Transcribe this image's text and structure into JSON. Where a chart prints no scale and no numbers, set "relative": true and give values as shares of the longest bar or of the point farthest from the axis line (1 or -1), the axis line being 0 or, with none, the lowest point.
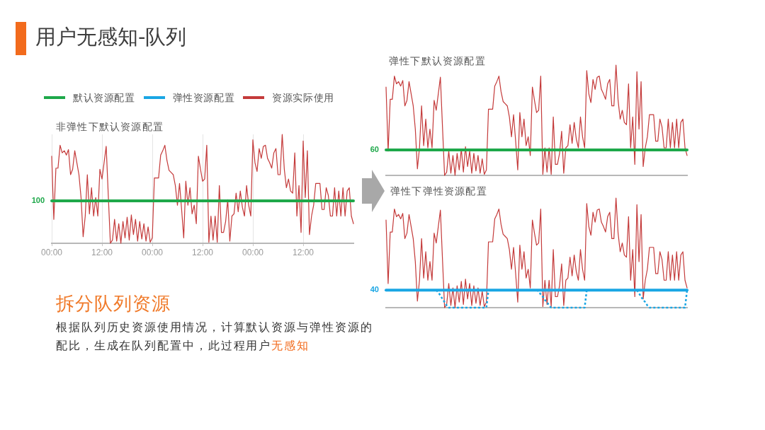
{
  "chart_data": [
    {
      "type": "other",
      "title": "用户无感知-队列"
    },
    {
      "type": "line",
      "title": "非弹性下默认资源配置",
      "relative": true,
      "legend": "top",
      "grid": "x",
      "marker": "none",
      "categories": [
        "00:00",
        null,
        null,
        null,
        null,
        null,
        null,
        null,
        null,
        null,
        null,
        null,
        null,
        null,
        null,
        null,
        null,
        null,
        null,
        null,
        null,
        null,
        null,
        null,
        "12:00",
        null,
        null,
        null,
        null,
        null,
        null,
        null,
        null,
        null,
        null,
        null,
        null,
        null,
        null,
        null,
        null,
        null,
        null,
        null,
        null,
        null,
        null,
        null,
        "00:00",
        null,
        null,
        null,
        null,
        null,
        null,
        null,
        null,
        null,
        null,
        null,
        null,
        null,
        null,
        null,
        null,
        null,
        null,
        null,
        null,
        null,
        null,
        null,
        "12:00",
        null,
        null,
        null,
        null,
        null,
        null,
        null,
        null,
        null,
        null,
        null,
        null,
        null,
        null,
        null,
        null,
        null,
        null,
        null,
        null,
        null,
        null,
        null,
        "00:00",
        null,
        null,
        null,
        null,
        null,
        null,
        null,
        null,
        null,
        null,
        null,
        null,
        null,
        null,
        null,
        null,
        null,
        null,
        null,
        null,
        null,
        null,
        null,
        "12:00",
        null,
        null,
        null,
        null,
        null,
        null,
        null,
        null,
        null,
        null,
        null,
        null,
        null,
        null,
        null,
        null,
        null,
        null,
        null,
        null,
        null,
        null,
        null,
        null
      ],
      "series": [
        {
          "name": "默认资源配置",
          "color": "#1ea84a",
          "values": [
            0.39,
            0.39,
            0.39,
            0.39,
            0.39,
            0.39,
            0.39,
            0.39,
            0.39,
            0.39,
            0.39,
            0.39,
            0.39,
            0.39,
            0.39,
            0.39,
            0.39,
            0.39,
            0.39,
            0.39,
            0.39,
            0.39,
            0.39,
            0.39,
            0.39,
            0.39,
            0.39,
            0.39,
            0.39,
            0.39,
            0.39,
            0.39,
            0.39,
            0.39,
            0.39,
            0.39,
            0.39,
            0.39,
            0.39,
            0.39,
            0.39,
            0.39,
            0.39,
            0.39,
            0.39,
            0.39,
            0.39,
            0.39,
            0.39,
            0.39,
            0.39,
            0.39,
            0.39,
            0.39,
            0.39,
            0.39,
            0.39,
            0.39,
            0.39,
            0.39,
            0.39,
            0.39,
            0.39,
            0.39,
            0.39,
            0.39,
            0.39,
            0.39,
            0.39,
            0.39,
            0.39,
            0.39,
            0.39,
            0.39,
            0.39,
            0.39,
            0.39,
            0.39,
            0.39,
            0.39,
            0.39,
            0.39,
            0.39,
            0.39,
            0.39,
            0.39,
            0.39,
            0.39,
            0.39,
            0.39,
            0.39,
            0.39,
            0.39,
            0.39,
            0.39,
            0.39,
            0.39,
            0.39,
            0.39,
            0.39,
            0.39,
            0.39,
            0.39,
            0.39,
            0.39,
            0.39,
            0.39,
            0.39,
            0.39,
            0.39,
            0.39,
            0.39,
            0.39,
            0.39,
            0.39,
            0.39,
            0.39,
            0.39,
            0.39,
            0.39,
            0.39,
            0.39,
            0.39,
            0.39,
            0.39,
            0.39,
            0.39,
            0.39,
            0.39,
            0.39,
            0.39,
            0.39,
            0.39,
            0.39,
            0.39,
            0.39,
            0.39,
            0.39,
            0.39,
            0.39,
            0.39,
            0.39,
            0.39,
            0.39,
            0.39
          ]
        },
        {
          "name": "资源实际使用",
          "color": "#c43a3a",
          "values": [
            0.8,
            0.22,
            0.69,
            0.69,
            0.9,
            0.83,
            0.85,
            0.81,
            0.86,
            0.63,
            0.68,
            0.85,
            0.74,
            0.63,
            0.42,
            0.06,
            0.25,
            0.63,
            0.27,
            0.51,
            0.25,
            0.42,
            0.25,
            0.68,
            0.59,
            0.74,
            0.89,
            0.44,
            0,
            0.03,
            0.22,
            0.02,
            0.18,
            0,
            0.2,
            0.05,
            0.24,
            0.03,
            0.26,
            0.08,
            0.22,
            0.02,
            0.2,
            0.04,
            0.18,
            0.02,
            0.15,
            0.01,
            0.05,
            0.6,
            0.6,
            0.6,
            0.81,
            0.85,
            0.9,
            0.76,
            0.67,
            0.65,
            0.63,
            0.53,
            0.35,
            0.55,
            0.31,
            0.05,
            0.57,
            0.35,
            0.51,
            0.27,
            0.35,
            0.18,
            0.8,
            0.68,
            0.57,
            0.59,
            0.9,
            0.01,
            0.25,
            0.03,
            0.25,
            0.01,
            0.53,
            0.1,
            0.1,
            0.2,
            0.4,
            0.02,
            0.25,
            0.27,
            0.46,
            0.29,
            0.48,
            0.33,
            0.25,
            0.53,
            0.35,
            0.25,
            0.95,
            0.74,
            0.66,
            0.87,
            0.78,
            0.89,
            0.9,
            0.78,
            0.74,
            0.69,
            0.83,
            0.87,
            0.63,
            0.63,
            1,
            0.68,
            0.51,
            0.59,
            0.48,
            0.46,
            0.83,
            0.25,
            0.53,
            0.1,
            0.94,
            0.42,
            0.85,
            0.08,
            0.25,
            0.35,
            0.55,
            0.55,
            0.55,
            0.31,
            0.31,
            0.51,
            0.44,
            0.25,
            0.25,
            0.51,
            0.25,
            0.48,
            0.25,
            0.51,
            0.25,
            0.48,
            0.51,
            0.25,
            0.18
          ]
        }
      ],
      "annotations": [
        "100"
      ]
    },
    {
      "type": "other",
      "title": "拆分队列资源",
      "annotations": [
        "根据队列历史资源使用情况，计算默认资源与弹性资源的",
        "配比，生成在队列配置中，此过程用户",
        "无感知"
      ]
    },
    {
      "type": "line",
      "title": "弹性下默认资源配置",
      "relative": true,
      "marker": "none",
      "categories": [
        null,
        null,
        null,
        null,
        null,
        null,
        null,
        null,
        null,
        null,
        null,
        null,
        null,
        null,
        null,
        null,
        null,
        null,
        null,
        null,
        null,
        null,
        null,
        null,
        null,
        null,
        null,
        null,
        null,
        null,
        null,
        null,
        null,
        null,
        null,
        null,
        null,
        null,
        null,
        null,
        null,
        null,
        null,
        null,
        null,
        null,
        null,
        null,
        null,
        null,
        null,
        null,
        null,
        null,
        null,
        null,
        null,
        null,
        null,
        null,
        null,
        null,
        null,
        null,
        null,
        null,
        null,
        null,
        null,
        null,
        null,
        null,
        null,
        null,
        null,
        null,
        null,
        null,
        null,
        null,
        null,
        null,
        null,
        null,
        null,
        null,
        null,
        null,
        null,
        null,
        null,
        null,
        null,
        null,
        null,
        null,
        null,
        null,
        null,
        null,
        null,
        null,
        null,
        null,
        null,
        null,
        null,
        null,
        null,
        null,
        null,
        null,
        null,
        null,
        null,
        null,
        null,
        null,
        null,
        null,
        null,
        null,
        null,
        null,
        null,
        null,
        null,
        null,
        null,
        null,
        null,
        null,
        null,
        null,
        null,
        null,
        null,
        null,
        null,
        null,
        null,
        null,
        null,
        null,
        null
      ],
      "series": [
        {
          "color": "#1ea84a",
          "values": [
            0.23,
            0.23,
            0.23,
            0.23,
            0.23,
            0.23,
            0.23,
            0.23,
            0.23,
            0.23,
            0.23,
            0.23,
            0.23,
            0.23,
            0.23,
            0.23,
            0.23,
            0.23,
            0.23,
            0.23,
            0.23,
            0.23,
            0.23,
            0.23,
            0.23,
            0.23,
            0.23,
            0.23,
            0.23,
            0.23,
            0.23,
            0.23,
            0.23,
            0.23,
            0.23,
            0.23,
            0.23,
            0.23,
            0.23,
            0.23,
            0.23,
            0.23,
            0.23,
            0.23,
            0.23,
            0.23,
            0.23,
            0.23,
            0.23,
            0.23,
            0.23,
            0.23,
            0.23,
            0.23,
            0.23,
            0.23,
            0.23,
            0.23,
            0.23,
            0.23,
            0.23,
            0.23,
            0.23,
            0.23,
            0.23,
            0.23,
            0.23,
            0.23,
            0.23,
            0.23,
            0.23,
            0.23,
            0.23,
            0.23,
            0.23,
            0.23,
            0.23,
            0.23,
            0.23,
            0.23,
            0.23,
            0.23,
            0.23,
            0.23,
            0.23,
            0.23,
            0.23,
            0.23,
            0.23,
            0.23,
            0.23,
            0.23,
            0.23,
            0.23,
            0.23,
            0.23,
            0.23,
            0.23,
            0.23,
            0.23,
            0.23,
            0.23,
            0.23,
            0.23,
            0.23,
            0.23,
            0.23,
            0.23,
            0.23,
            0.23,
            0.23,
            0.23,
            0.23,
            0.23,
            0.23,
            0.23,
            0.23,
            0.23,
            0.23,
            0.23,
            0.23,
            0.23,
            0.23,
            0.23,
            0.23,
            0.23,
            0.23,
            0.23,
            0.23,
            0.23,
            0.23,
            0.23,
            0.23,
            0.23,
            0.23,
            0.23,
            0.23,
            0.23,
            0.23,
            0.23,
            0.23,
            0.23,
            0.23,
            0.23,
            0.23
          ]
        },
        {
          "color": "#c43a3a",
          "values": [
            0.8,
            0.22,
            0.69,
            0.69,
            0.9,
            0.83,
            0.85,
            0.81,
            0.86,
            0.63,
            0.68,
            0.85,
            0.74,
            0.63,
            0.42,
            0.06,
            0.25,
            0.63,
            0.27,
            0.51,
            0.25,
            0.42,
            0.25,
            0.68,
            0.59,
            0.74,
            0.89,
            0.44,
            0,
            0.03,
            0.22,
            0.02,
            0.18,
            0,
            0.2,
            0.05,
            0.24,
            0.03,
            0.26,
            0.08,
            0.22,
            0.02,
            0.2,
            0.04,
            0.18,
            0.02,
            0.15,
            0.01,
            0.05,
            0.6,
            0.6,
            0.6,
            0.81,
            0.85,
            0.9,
            0.76,
            0.67,
            0.65,
            0.63,
            0.53,
            0.35,
            0.55,
            0.31,
            0.05,
            0.57,
            0.35,
            0.51,
            0.27,
            0.35,
            0.18,
            0.8,
            0.68,
            0.57,
            0.59,
            0.9,
            0.01,
            0.25,
            0.03,
            0.25,
            0.01,
            0.53,
            0.1,
            0.1,
            0.2,
            0.4,
            0.02,
            0.25,
            0.27,
            0.46,
            0.29,
            0.48,
            0.33,
            0.25,
            0.53,
            0.35,
            0.25,
            0.95,
            0.74,
            0.66,
            0.87,
            0.78,
            0.89,
            0.9,
            0.78,
            0.74,
            0.69,
            0.83,
            0.87,
            0.63,
            0.63,
            1,
            0.68,
            0.51,
            0.59,
            0.48,
            0.46,
            0.83,
            0.25,
            0.53,
            0.1,
            0.94,
            0.42,
            0.85,
            0.08,
            0.25,
            0.35,
            0.55,
            0.55,
            0.55,
            0.31,
            0.31,
            0.51,
            0.44,
            0.25,
            0.25,
            0.51,
            0.25,
            0.48,
            0.25,
            0.51,
            0.25,
            0.48,
            0.51,
            0.25,
            0.18
          ]
        }
      ],
      "annotations": [
        "60"
      ]
    },
    {
      "type": "line",
      "title": "弹性下弹性资源配置",
      "relative": true,
      "marker": "none",
      "categories": [
        null,
        null,
        null,
        null,
        null,
        null,
        null,
        null,
        null,
        null,
        null,
        null,
        null,
        null,
        null,
        null,
        null,
        null,
        null,
        null,
        null,
        null,
        null,
        null,
        null,
        null,
        null,
        null,
        null,
        null,
        null,
        null,
        null,
        null,
        null,
        null,
        null,
        null,
        null,
        null,
        null,
        null,
        null,
        null,
        null,
        null,
        null,
        null,
        null,
        null,
        null,
        null,
        null,
        null,
        null,
        null,
        null,
        null,
        null,
        null,
        null,
        null,
        null,
        null,
        null,
        null,
        null,
        null,
        null,
        null,
        null,
        null,
        null,
        null,
        null,
        null,
        null,
        null,
        null,
        null,
        null,
        null,
        null,
        null,
        null,
        null,
        null,
        null,
        null,
        null,
        null,
        null,
        null,
        null,
        null,
        null,
        null,
        null,
        null,
        null,
        null,
        null,
        null,
        null,
        null,
        null,
        null,
        null,
        null,
        null,
        null,
        null,
        null,
        null,
        null,
        null,
        null,
        null,
        null,
        null,
        null,
        null,
        null,
        null,
        null,
        null,
        null,
        null,
        null,
        null,
        null,
        null,
        null,
        null,
        null,
        null,
        null,
        null,
        null,
        null,
        null,
        null,
        null,
        null,
        null
      ],
      "series": [
        {
          "name": "弹性资源配置",
          "color": "#1aa6e4",
          "values": [
            0.16,
            0.16,
            0.16,
            0.16,
            0.16,
            0.16,
            0.16,
            0.16,
            0.16,
            0.16,
            0.16,
            0.16,
            0.16,
            0.16,
            0.16,
            0.16,
            0.16,
            0.16,
            0.16,
            0.16,
            0.16,
            0.16,
            0.16,
            0.16,
            0.16,
            0.16,
            0.16,
            0.16,
            0.16,
            0.16,
            0.16,
            0.16,
            0.16,
            0.16,
            0.16,
            0.16,
            0.16,
            0.16,
            0.16,
            0.16,
            0.16,
            0.16,
            0.16,
            0.16,
            0.16,
            0.16,
            0.16,
            0.16,
            0.16,
            0.16,
            0.16,
            0.16,
            0.16,
            0.16,
            0.16,
            0.16,
            0.16,
            0.16,
            0.16,
            0.16,
            0.16,
            0.16,
            0.16,
            0.16,
            0.16,
            0.16,
            0.16,
            0.16,
            0.16,
            0.16,
            0.16,
            0.16,
            0.16,
            0.16,
            0.16,
            0.16,
            0.16,
            0.16,
            0.16,
            0.16,
            0.16,
            0.16,
            0.16,
            0.16,
            0.16,
            0.16,
            0.16,
            0.16,
            0.16,
            0.16,
            0.16,
            0.16,
            0.16,
            0.16,
            0.16,
            0.16,
            0.16,
            0.16,
            0.16,
            0.16,
            0.16,
            0.16,
            0.16,
            0.16,
            0.16,
            0.16,
            0.16,
            0.16,
            0.16,
            0.16,
            0.16,
            0.16,
            0.16,
            0.16,
            0.16,
            0.16,
            0.16,
            0.16,
            0.16,
            0.16,
            0.16,
            0.16,
            0.16,
            0.16,
            0.16,
            0.16,
            0.16,
            0.16,
            0.16,
            0.16,
            0.16,
            0.16,
            0.16,
            0.16,
            0.16,
            0.16,
            0.16,
            0.16,
            0.16,
            0.16,
            0.16,
            0.16,
            0.16,
            0.16,
            0.16
          ]
        },
        {
          "color": "#1aa6e4",
          "line_style": "dotted",
          "values": [
            null,
            null,
            null,
            null,
            null,
            null,
            null,
            null,
            null,
            null,
            null,
            null,
            null,
            null,
            null,
            null,
            null,
            null,
            null,
            null,
            null,
            null,
            null,
            null,
            0.16,
            0.14,
            0.11,
            0.08,
            0.05,
            0.02,
            0,
            0,
            0,
            0,
            0,
            0,
            0,
            0,
            0,
            0,
            0,
            0,
            0,
            0,
            0,
            0,
            0,
            0,
            0,
            0.16,
            null,
            null,
            null,
            null,
            null,
            null,
            null,
            null,
            null,
            null,
            null,
            null,
            null,
            null,
            null,
            null,
            null,
            null,
            null,
            null,
            null,
            null,
            0.16,
            0.15,
            0.12,
            0.1,
            0.07,
            0.05,
            0.02,
            0,
            0,
            0,
            0,
            0,
            0,
            0,
            0,
            0,
            0,
            0,
            0,
            0,
            0,
            0,
            0,
            0,
            0.16,
            null,
            null,
            null,
            null,
            null,
            null,
            null,
            null,
            null,
            null,
            null,
            null,
            null,
            null,
            null,
            null,
            null,
            null,
            null,
            null,
            null,
            null,
            null,
            0.16,
            0.13,
            0.1,
            0.07,
            0.05,
            0.02,
            0,
            0,
            0,
            0,
            0,
            0,
            0,
            0,
            0,
            0,
            0,
            0,
            0,
            0,
            0,
            0,
            0,
            0,
            0.16
          ]
        },
        {
          "color": "#c43a3a",
          "values": [
            0.8,
            0.22,
            0.69,
            0.69,
            0.9,
            0.83,
            0.85,
            0.81,
            0.86,
            0.63,
            0.68,
            0.85,
            0.74,
            0.63,
            0.42,
            0.06,
            0.25,
            0.63,
            0.27,
            0.51,
            0.25,
            0.42,
            0.25,
            0.68,
            0.59,
            0.74,
            0.89,
            0.44,
            0,
            0.03,
            0.22,
            0.02,
            0.18,
            0,
            0.2,
            0.05,
            0.24,
            0.03,
            0.26,
            0.08,
            0.22,
            0.02,
            0.2,
            0.04,
            0.18,
            0.02,
            0.15,
            0.01,
            0.05,
            0.6,
            0.6,
            0.6,
            0.81,
            0.85,
            0.9,
            0.76,
            0.67,
            0.65,
            0.63,
            0.53,
            0.35,
            0.55,
            0.31,
            0.05,
            0.57,
            0.35,
            0.51,
            0.27,
            0.35,
            0.18,
            0.8,
            0.68,
            0.57,
            0.59,
            0.9,
            0.01,
            0.25,
            0.03,
            0.25,
            0.01,
            0.53,
            0.1,
            0.1,
            0.2,
            0.4,
            0.02,
            0.25,
            0.27,
            0.46,
            0.29,
            0.48,
            0.33,
            0.25,
            0.53,
            0.35,
            0.25,
            0.95,
            0.74,
            0.66,
            0.87,
            0.78,
            0.89,
            0.9,
            0.78,
            0.74,
            0.69,
            0.83,
            0.87,
            0.63,
            0.63,
            1,
            0.68,
            0.51,
            0.59,
            0.48,
            0.46,
            0.83,
            0.25,
            0.53,
            0.1,
            0.94,
            0.42,
            0.85,
            0.08,
            0.25,
            0.35,
            0.55,
            0.55,
            0.55,
            0.31,
            0.31,
            0.51,
            0.44,
            0.25,
            0.25,
            0.51,
            0.25,
            0.48,
            0.25,
            0.51,
            0.25,
            0.48,
            0.51,
            0.25,
            0.18
          ]
        }
      ],
      "annotations": [
        "40"
      ]
    }
  ]
}
